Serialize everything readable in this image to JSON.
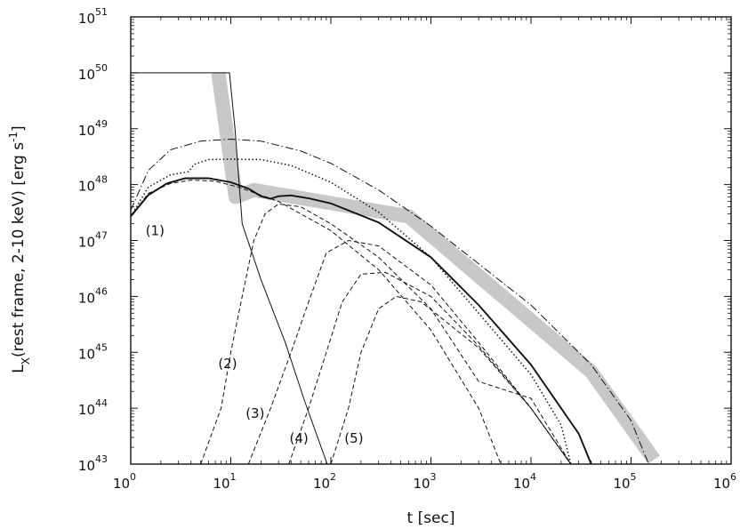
{
  "chart_data": {
    "type": "line",
    "title": "",
    "xlabel": "t [sec]",
    "ylabel": "L_X(rest frame, 2-10 keV) [erg s^-1]",
    "xlabel_parts": {
      "main": "t [sec]"
    },
    "ylabel_parts": {
      "L": "L",
      "sub": "X",
      "mid": "(rest frame, 2-10 keV) [erg s",
      "exp": "-1",
      "end": "]"
    },
    "x_scale": "log",
    "y_scale": "log",
    "xlim": [
      1,
      1000000
    ],
    "ylim": [
      1e+43,
      1e+51
    ],
    "grid": false,
    "legend": "none",
    "x_ticks": [
      {
        "base": "10",
        "exp": "0",
        "value": 1
      },
      {
        "base": "10",
        "exp": "1",
        "value": 10
      },
      {
        "base": "10",
        "exp": "2",
        "value": 100
      },
      {
        "base": "10",
        "exp": "3",
        "value": 1000
      },
      {
        "base": "10",
        "exp": "4",
        "value": 10000
      },
      {
        "base": "10",
        "exp": "5",
        "value": 100000
      },
      {
        "base": "10",
        "exp": "6",
        "value": 1000000
      }
    ],
    "y_ticks": [
      {
        "base": "10",
        "exp": "43",
        "value": 1e+43
      },
      {
        "base": "10",
        "exp": "44",
        "value": 1e+44
      },
      {
        "base": "10",
        "exp": "45",
        "value": 1e+45
      },
      {
        "base": "10",
        "exp": "46",
        "value": 1e+46
      },
      {
        "base": "10",
        "exp": "47",
        "value": 1e+47
      },
      {
        "base": "10",
        "exp": "48",
        "value": 1e+48
      },
      {
        "base": "10",
        "exp": "49",
        "value": 1e+49
      },
      {
        "base": "10",
        "exp": "50",
        "value": 1e+50
      },
      {
        "base": "10",
        "exp": "51",
        "value": 1e+51
      }
    ],
    "annotations": [
      {
        "text": "(1)",
        "x": 1.75,
        "y": 1.5e+47
      },
      {
        "text": "(2)",
        "x": 9.3,
        "y": 6.3e+44
      },
      {
        "text": "(3)",
        "x": 17.5,
        "y": 8e+43
      },
      {
        "text": "(4)",
        "x": 48,
        "y": 2.9e+43
      },
      {
        "text": "(5)",
        "x": 170,
        "y": 2.9e+43
      }
    ],
    "series": [
      {
        "name": "",
        "style": "band",
        "color": "#c8c8c8",
        "points": [
          [
            7.5,
            1e+50
          ],
          [
            11.2,
            6e+47
          ],
          [
            17,
            8e+47
          ],
          [
            600,
            2.7e+47
          ],
          [
            40000,
            4.5e+44
          ],
          [
            170000,
            1.2e+43
          ]
        ]
      },
      {
        "name": "",
        "style": "solid-thin",
        "color": "#111111",
        "points": [
          [
            1,
            1e+50
          ],
          [
            9.7,
            1e+50
          ],
          [
            11,
            1e+49
          ],
          [
            13,
            2e+47
          ],
          [
            20,
            2e+46
          ],
          [
            35,
            1.5e+45
          ],
          [
            55,
            1.3e+44
          ],
          [
            92,
            1e+43
          ]
        ]
      },
      {
        "name": "",
        "style": "solid-thick",
        "color": "#111111",
        "points": [
          [
            1,
            2.7e+47
          ],
          [
            1.5,
            6.5e+47
          ],
          [
            2.3,
            1.05e+48
          ],
          [
            3.5,
            1.3e+48
          ],
          [
            6,
            1.3e+48
          ],
          [
            10,
            1.1e+48
          ],
          [
            15,
            8.5e+47
          ],
          [
            20,
            6.2e+47
          ],
          [
            25,
            5.6e+47
          ],
          [
            30,
            6.2e+47
          ],
          [
            40,
            6.4e+47
          ],
          [
            60,
            5.7e+47
          ],
          [
            100,
            4.6e+47
          ],
          [
            300,
            2.1e+47
          ],
          [
            1000,
            5e+46
          ],
          [
            3000,
            7e+45
          ],
          [
            10000,
            6e+44
          ],
          [
            30000,
            3.5e+43
          ],
          [
            40000,
            1e+43
          ]
        ]
      },
      {
        "name": "",
        "style": "dotted",
        "color": "#111111",
        "points": [
          [
            1,
            2.7e+47
          ],
          [
            1.5,
            9e+47
          ],
          [
            2.5,
            1.5e+48
          ],
          [
            3.8,
            1.7e+48
          ],
          [
            4.3,
            2.3e+48
          ],
          [
            6,
            2.8e+48
          ],
          [
            10,
            2.85e+48
          ],
          [
            20,
            2.8e+48
          ],
          [
            40,
            2.2e+48
          ],
          [
            100,
            1.1e+48
          ],
          [
            300,
            3.2e+47
          ],
          [
            1000,
            5e+46
          ],
          [
            3000,
            5e+45
          ],
          [
            10000,
            4e+44
          ],
          [
            20000,
            5e+43
          ],
          [
            25000,
            1e+43
          ]
        ]
      },
      {
        "name": "",
        "style": "dash-dot",
        "color": "#111111",
        "points": [
          [
            1,
            3.5e+47
          ],
          [
            1.5,
            1.8e+48
          ],
          [
            2.5,
            4.2e+48
          ],
          [
            5,
            6e+48
          ],
          [
            10,
            6.5e+48
          ],
          [
            20,
            6e+48
          ],
          [
            50,
            4e+48
          ],
          [
            100,
            2.4e+48
          ],
          [
            300,
            8e+47
          ],
          [
            1000,
            1.8e+47
          ],
          [
            10000,
            7e+45
          ],
          [
            40000,
            6e+44
          ],
          [
            100000,
            6e+43
          ],
          [
            150000,
            1e+43
          ]
        ]
      },
      {
        "name": "(1)",
        "style": "dashed",
        "color": "#111111",
        "points": [
          [
            1,
            2.7e+47
          ],
          [
            1.5,
            7e+47
          ],
          [
            2.5,
            1.05e+48
          ],
          [
            4,
            1.2e+48
          ],
          [
            7,
            1.15e+48
          ],
          [
            12,
            9e+47
          ],
          [
            30,
            5e+47
          ],
          [
            100,
            1.5e+47
          ],
          [
            300,
            3e+46
          ],
          [
            1000,
            2.5e+45
          ],
          [
            3000,
            1e+44
          ],
          [
            5000,
            1e+43
          ]
        ]
      },
      {
        "name": "(2)",
        "style": "dashed",
        "color": "#111111",
        "points": [
          [
            5,
            1e+43
          ],
          [
            8,
            1e+44
          ],
          [
            10,
            1e+45
          ],
          [
            13,
            1e+46
          ],
          [
            17,
            1e+47
          ],
          [
            22,
            3e+47
          ],
          [
            30,
            4.5e+47
          ],
          [
            50,
            4e+47
          ],
          [
            100,
            2e+47
          ],
          [
            300,
            5e+46
          ],
          [
            1000,
            6e+45
          ],
          [
            3000,
            3e+44
          ],
          [
            10000,
            1.5e+44
          ],
          [
            25000,
            1e+43
          ]
        ]
      },
      {
        "name": "(3)",
        "style": "dashed",
        "color": "#111111",
        "points": [
          [
            15,
            1e+43
          ],
          [
            25,
            1e+44
          ],
          [
            40,
            1e+45
          ],
          [
            60,
            8e+45
          ],
          [
            90,
            6e+46
          ],
          [
            150,
            1e+47
          ],
          [
            300,
            8e+46
          ],
          [
            1000,
            1.6e+46
          ],
          [
            3000,
            1.5e+45
          ],
          [
            10000,
            1e+44
          ],
          [
            25000,
            1e+43
          ]
        ]
      },
      {
        "name": "(4)",
        "style": "dashed",
        "color": "#111111",
        "points": [
          [
            38,
            1e+43
          ],
          [
            60,
            1e+44
          ],
          [
            90,
            1e+45
          ],
          [
            130,
            8e+45
          ],
          [
            200,
            2.5e+46
          ],
          [
            350,
            2.7e+46
          ],
          [
            1000,
            1e+46
          ],
          [
            3000,
            1.3e+45
          ],
          [
            10000,
            1e+44
          ],
          [
            25000,
            1e+43
          ]
        ]
      },
      {
        "name": "(5)",
        "style": "dashed",
        "color": "#111111",
        "points": [
          [
            100,
            1e+43
          ],
          [
            150,
            1e+44
          ],
          [
            200,
            1e+45
          ],
          [
            300,
            6e+45
          ],
          [
            450,
            1e+46
          ],
          [
            800,
            8e+45
          ],
          [
            3000,
            1.2e+45
          ],
          [
            10000,
            1e+44
          ],
          [
            25000,
            1e+43
          ]
        ]
      }
    ]
  }
}
